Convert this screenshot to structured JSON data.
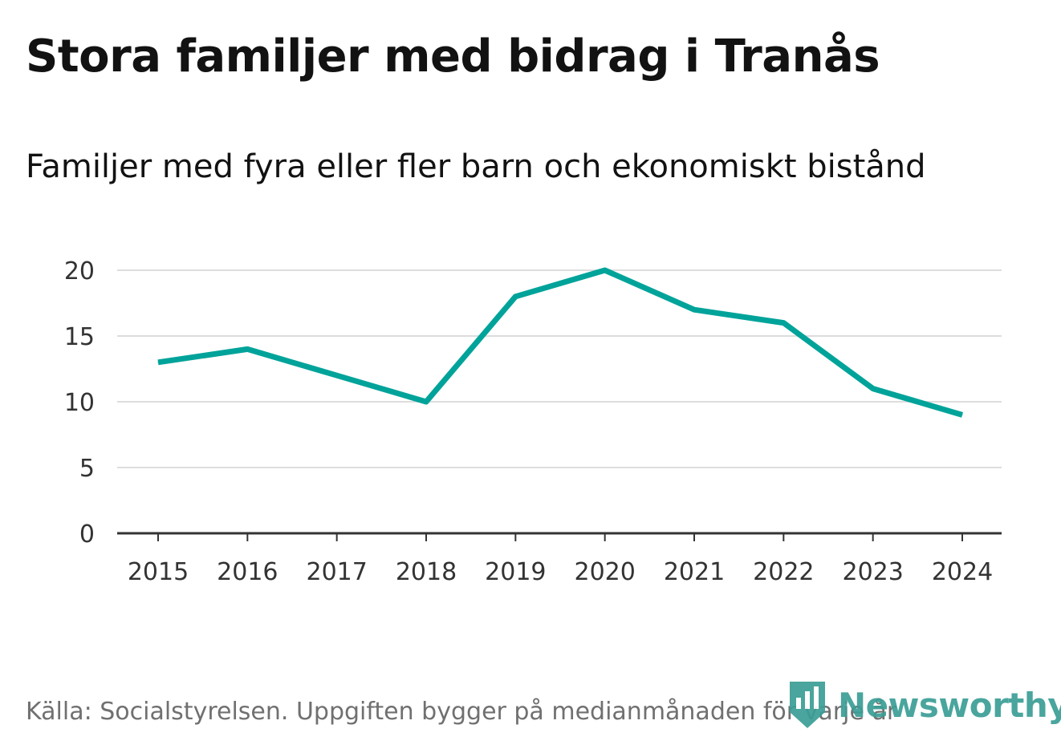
{
  "title": "Stora familjer med bidrag i Tranås",
  "subtitle": "Familjer med fyra eller fler barn och ekonomiskt bistånd",
  "source": "Källa: Socialstyrelsen. Uppgiften bygger på medianmånaden för varje år",
  "brand": {
    "name": "Newsworthy",
    "icon": "newsworthy-logo-icon",
    "color": "#3a9e95"
  },
  "colors": {
    "line": "#00a39a",
    "grid": "#dddddd",
    "axis": "#333333"
  },
  "chart_data": {
    "type": "line",
    "title": "Stora familjer med bidrag i Tranås",
    "subtitle": "Familjer med fyra eller fler barn och ekonomiskt bistånd",
    "xlabel": "",
    "ylabel": "",
    "x": [
      "2015",
      "2016",
      "2017",
      "2018",
      "2019",
      "2020",
      "2021",
      "2022",
      "2023",
      "2024"
    ],
    "series": [
      {
        "name": "Familjer med fyra eller fler barn och ekonomiskt bistånd",
        "values": [
          13,
          14,
          12,
          10,
          18,
          20,
          17,
          16,
          11,
          9
        ]
      }
    ],
    "ylim": [
      0,
      20
    ],
    "yticks": [
      0,
      5,
      10,
      15,
      20
    ],
    "grid": true,
    "legend": "none"
  }
}
